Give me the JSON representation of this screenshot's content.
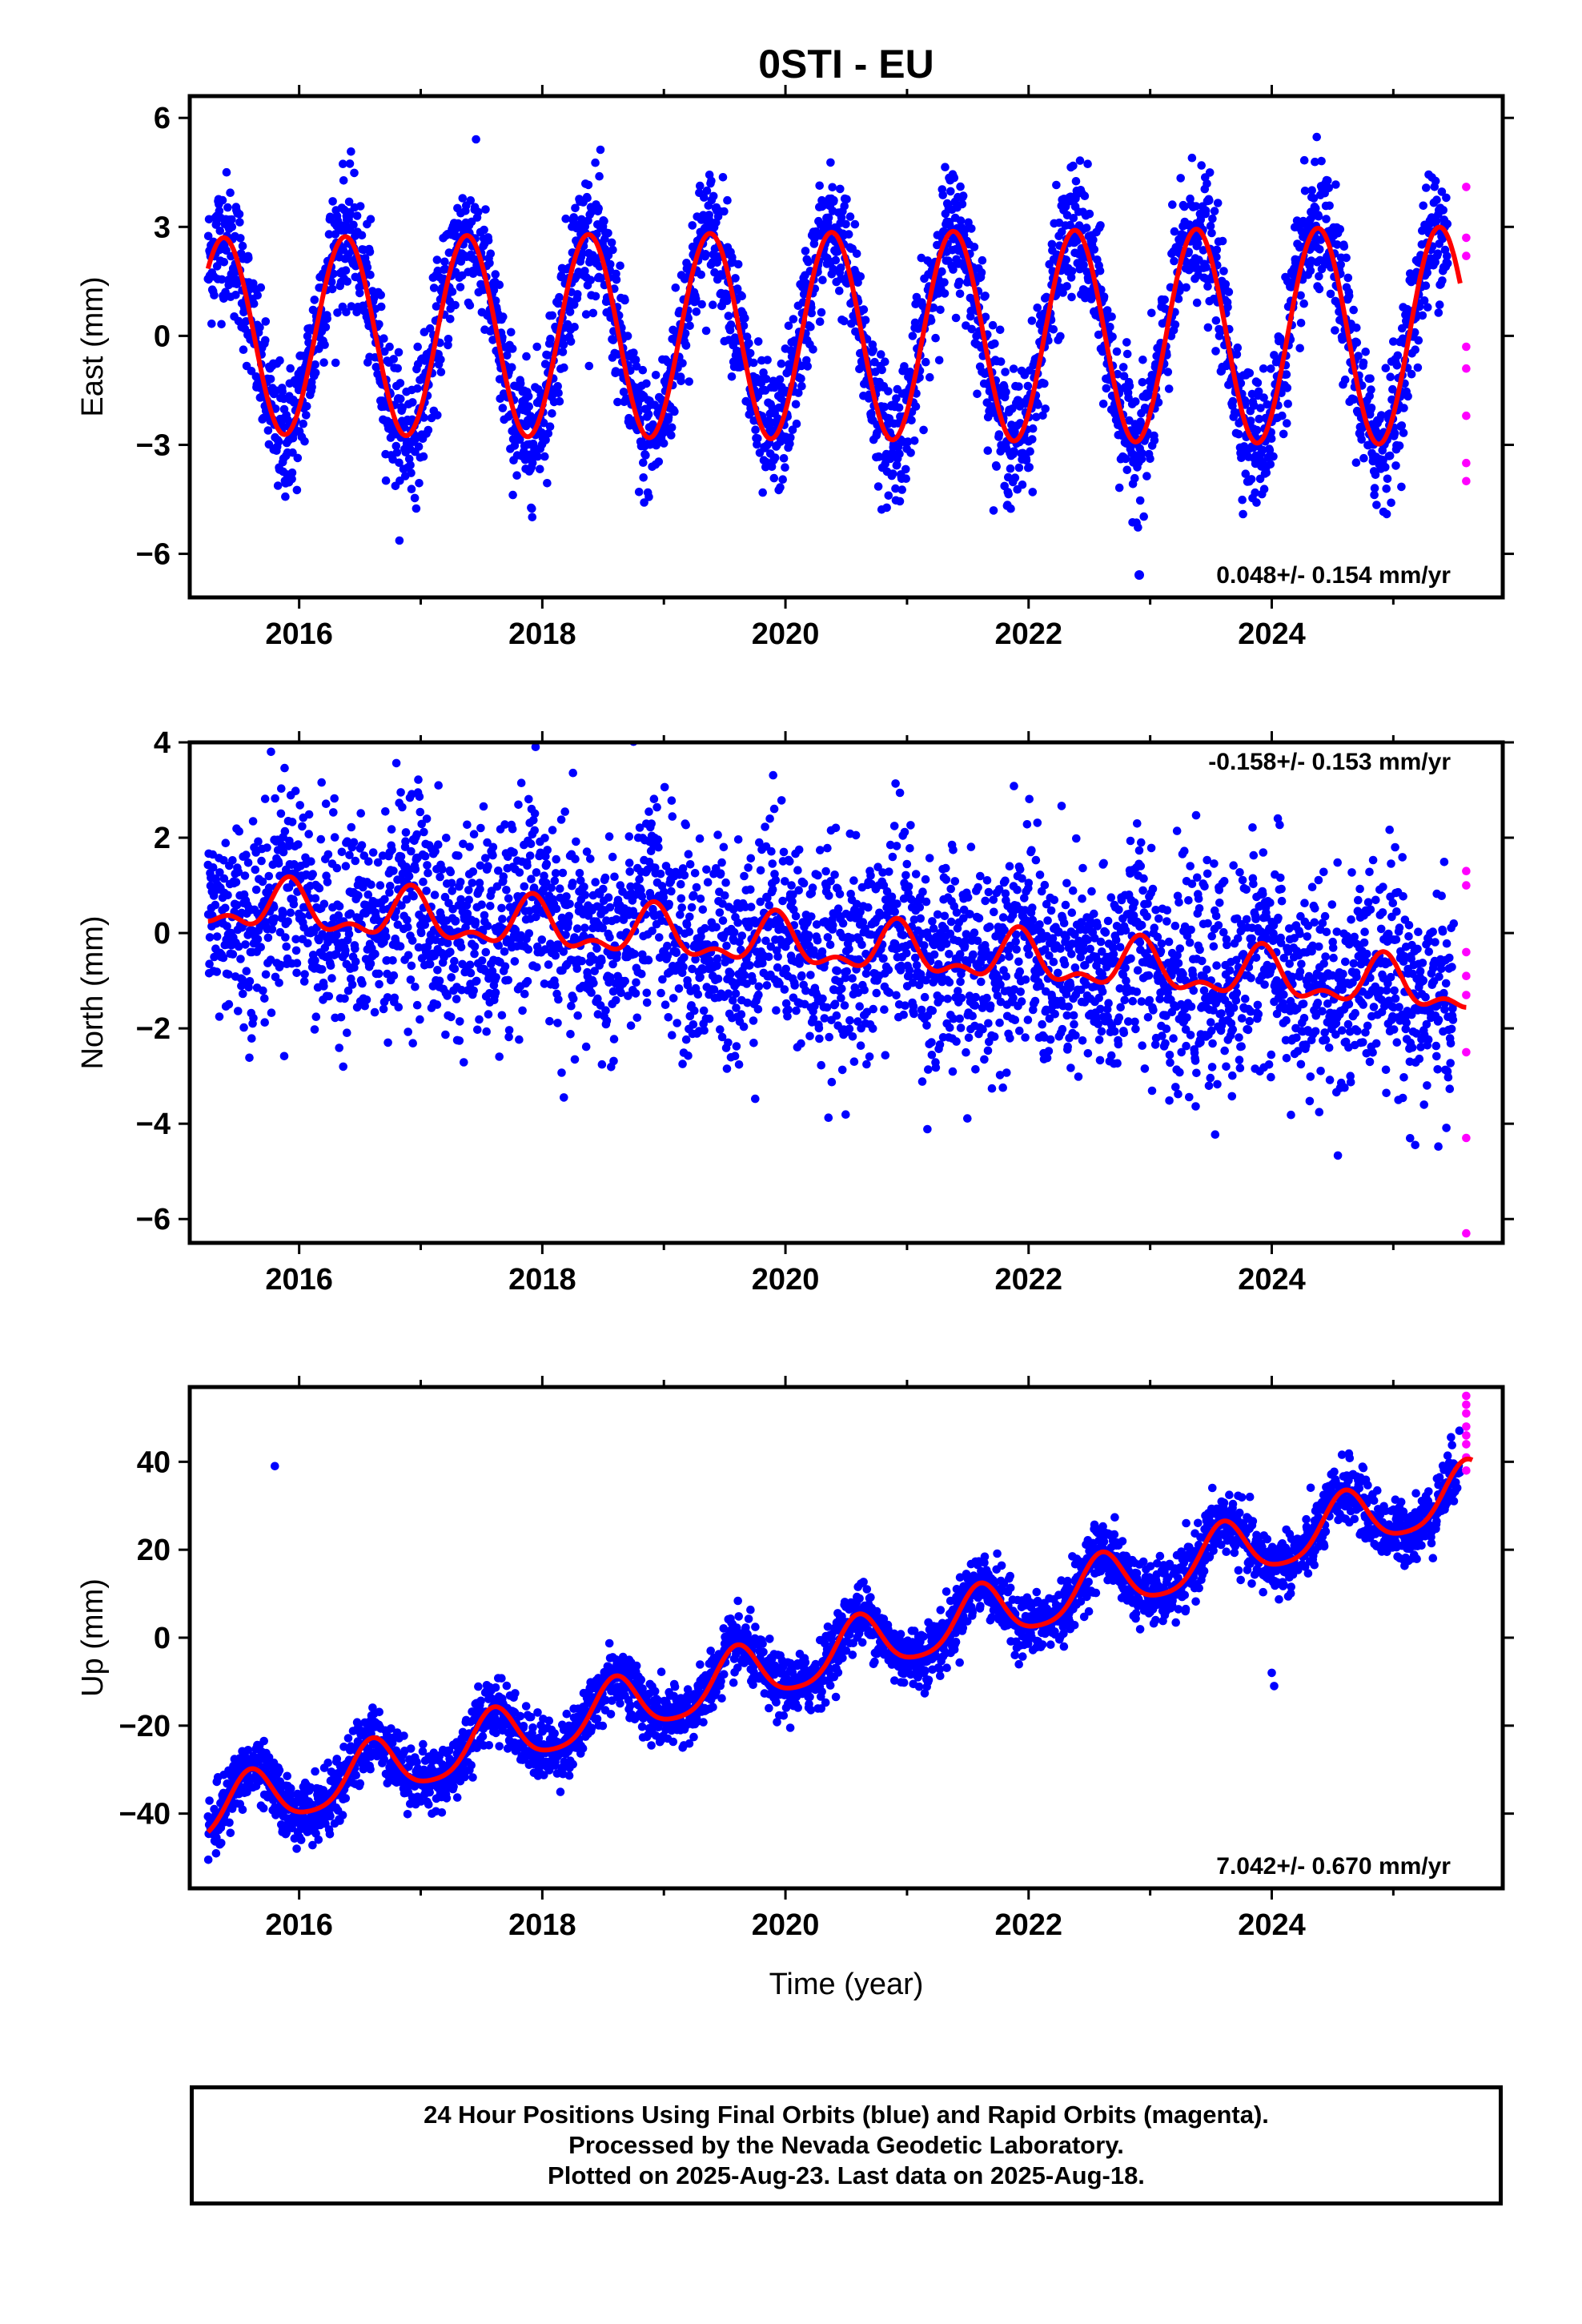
{
  "title": "0STI - EU",
  "colors": {
    "final_points": "#0000ff",
    "rapid_points": "#ff00ff",
    "model_curve": "#ff0000",
    "frame": "#000000"
  },
  "xaxis": {
    "label": "Time (year)",
    "range": [
      2015.1,
      2025.9
    ],
    "ticks": [
      2016,
      2018,
      2020,
      2022,
      2024
    ],
    "tick_labels": [
      "2016",
      "2018",
      "2020",
      "2022",
      "2024"
    ]
  },
  "caption": {
    "line1": "24 Hour Positions Using Final Orbits (blue) and Rapid Orbits (magenta).",
    "line2": "Processed by the Nevada Geodetic Laboratory.",
    "line3": "Plotted on 2025-Aug-23. Last data on 2025-Aug-18."
  },
  "chart_data": [
    {
      "type": "scatter",
      "component": "East",
      "ylabel": "East (mm)",
      "ylim": [
        -7.2,
        6.6
      ],
      "yticks": [
        -6,
        -3,
        0,
        3,
        6
      ],
      "ytick_labels": [
        "−6",
        "−3",
        "0",
        "3",
        "6"
      ],
      "rate_label": "0.048+/- 0.154 mm/yr",
      "rate_label_position": "bottom-right",
      "series": [
        {
          "name": "Final Orbits (blue)",
          "color": "#0000ff",
          "x_range": [
            2015.25,
            2025.45
          ],
          "trend_mm_per_yr": 0.048,
          "annual_amplitude_mm": 2.7,
          "annual_peak_month": 5,
          "scatter_sd_mm": 0.9
        },
        {
          "name": "Rapid Orbits (magenta)",
          "color": "#ff00ff",
          "x": [
            2025.55,
            2025.56,
            2025.57,
            2025.58,
            2025.59,
            2025.6,
            2025.61,
            2025.62
          ],
          "y": [
            4.1,
            2.7,
            2.2,
            -0.3,
            -0.9,
            -2.2,
            -3.5,
            -4.0
          ]
        }
      ],
      "model_curve": {
        "color": "#ff0000",
        "annual_amplitude_mm": [
          2.7,
          3.0
        ],
        "offset_mm": 0.0,
        "end_value_mm": -0.1
      }
    },
    {
      "type": "scatter",
      "component": "North",
      "ylabel": "North (mm)",
      "ylim": [
        -6.5,
        4.0
      ],
      "yticks": [
        -6,
        -4,
        -2,
        0,
        2,
        4
      ],
      "ytick_labels": [
        "−6",
        "−4",
        "−2",
        "0",
        "2",
        "4"
      ],
      "rate_label": "-0.158+/- 0.153 mm/yr",
      "rate_label_position": "top-right",
      "series": [
        {
          "name": "Final Orbits (blue)",
          "color": "#0000ff",
          "x_range": [
            2015.25,
            2025.5
          ],
          "trend_mm_per_yr": -0.158,
          "annual_amplitude_mm": 0.5,
          "scatter_sd_mm": 1.1
        },
        {
          "name": "Rapid Orbits (magenta)",
          "color": "#ff00ff",
          "x": [
            2025.55,
            2025.56,
            2025.57,
            2025.58,
            2025.59,
            2025.6,
            2025.61,
            2025.62
          ],
          "y": [
            1.3,
            1.0,
            -0.4,
            -0.9,
            -1.3,
            -2.5,
            -4.3,
            -6.3
          ]
        }
      ],
      "model_curve": {
        "color": "#ff0000",
        "start_value_mm": 0.6,
        "end_value_mm": -1.2,
        "annual_amplitude_mm": 0.45
      }
    },
    {
      "type": "scatter",
      "component": "Up",
      "ylabel": "Up (mm)",
      "ylim": [
        -57,
        57
      ],
      "yticks": [
        -40,
        -20,
        0,
        20,
        40
      ],
      "ytick_labels": [
        "−40",
        "−20",
        "0",
        "20",
        "40"
      ],
      "rate_label": "7.042+/- 0.670 mm/yr",
      "rate_label_position": "bottom-right",
      "series": [
        {
          "name": "Final Orbits (blue)",
          "color": "#0000ff",
          "x_range": [
            2015.25,
            2025.55
          ],
          "trend_mm_per_yr": 7.042,
          "annual_amplitude_mm": 6.5,
          "annual_peak_month": 8,
          "scatter_sd_mm": 3.5,
          "outliers": [
            [
              2015.8,
              39
            ],
            [
              2024.0,
              -8
            ],
            [
              2024.02,
              -11
            ]
          ]
        },
        {
          "name": "Rapid Orbits (magenta)",
          "color": "#ff00ff",
          "x": [
            2025.55,
            2025.56,
            2025.57,
            2025.58,
            2025.59,
            2025.6,
            2025.61,
            2025.62
          ],
          "y": [
            55,
            53,
            51,
            48,
            46,
            44,
            41,
            38
          ]
        }
      ],
      "model_curve": {
        "color": "#ff0000",
        "start_value_mm": -40,
        "end_value_mm": 46,
        "annual_amplitude_mm": 6.5
      }
    }
  ]
}
